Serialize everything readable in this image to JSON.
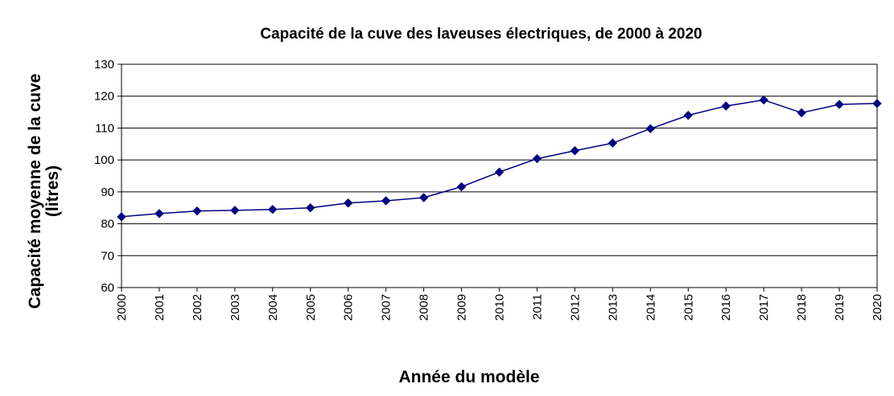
{
  "chart_data": {
    "type": "line",
    "title": "Capacité de la cuve des laveuses électriques, de 2000 à 2020",
    "xlabel": "Année du modèle",
    "ylabel_line1": "Capacité moyenne de la cuve",
    "ylabel_line2": "(litres)",
    "ylim": [
      60,
      130
    ],
    "yticks": [
      60,
      70,
      80,
      90,
      100,
      110,
      120,
      130
    ],
    "categories": [
      "2000",
      "2001",
      "2002",
      "2003",
      "2004",
      "2005",
      "2006",
      "2007",
      "2008",
      "2009",
      "2010",
      "2011",
      "2012",
      "2013",
      "2014",
      "2015",
      "2016",
      "2017",
      "2018",
      "2019",
      "2020"
    ],
    "series": [
      {
        "values": [
          82.2,
          83.2,
          84.0,
          84.2,
          84.5,
          85.0,
          86.5,
          87.2,
          88.2,
          91.6,
          96.2,
          100.4,
          102.9,
          105.3,
          109.8,
          114.0,
          116.9,
          118.8,
          114.8,
          117.4,
          117.7
        ],
        "color": "#000080",
        "marker": "diamond"
      }
    ],
    "grid": true,
    "legend": "none"
  }
}
